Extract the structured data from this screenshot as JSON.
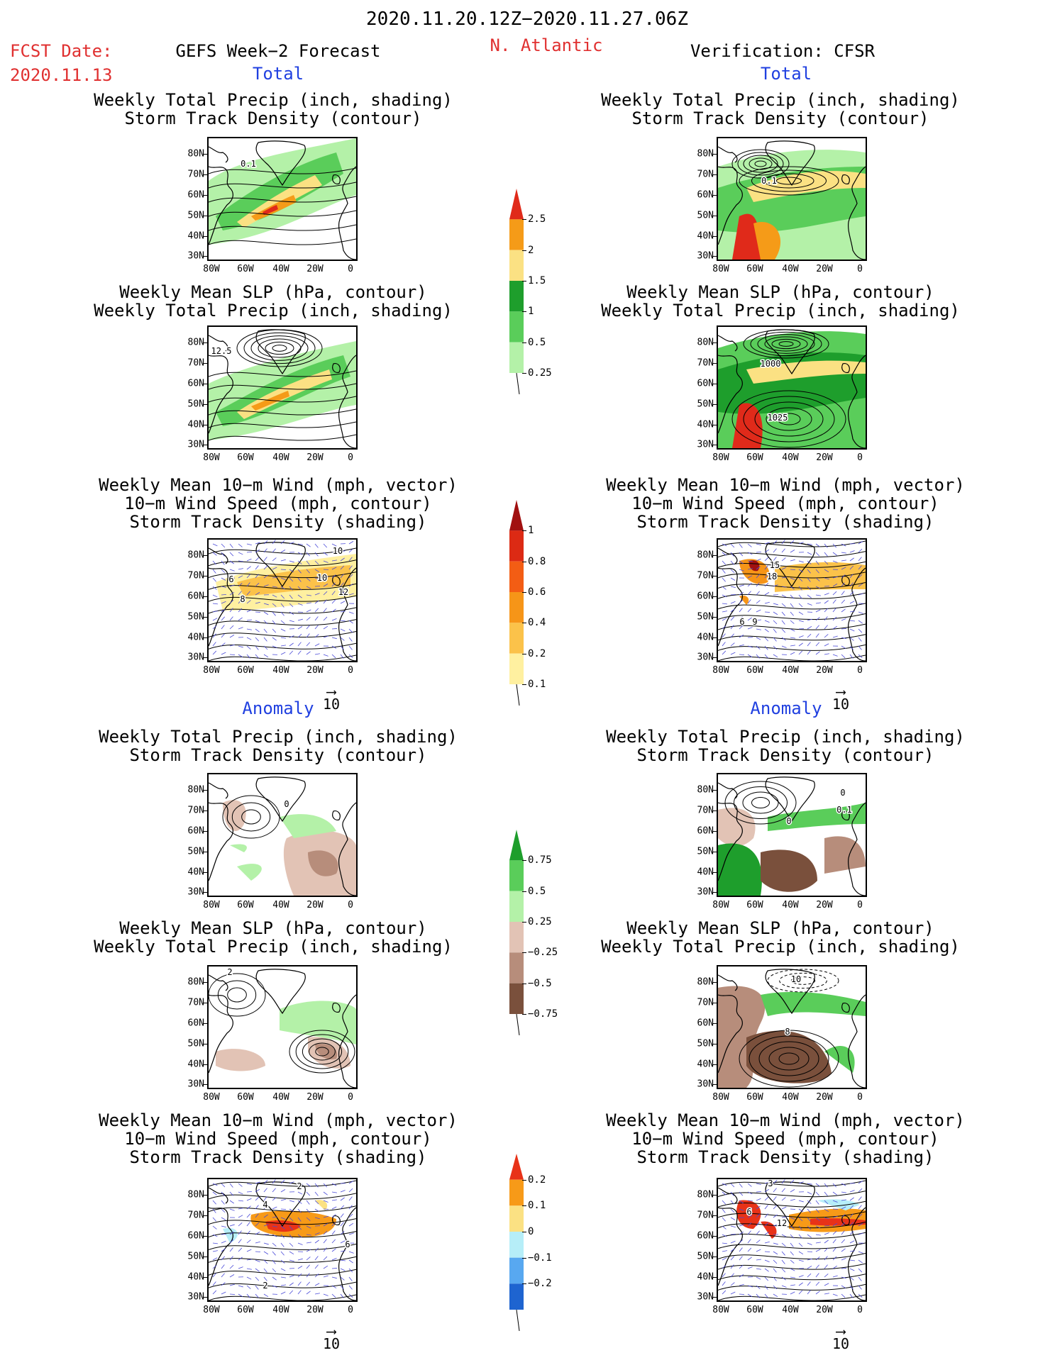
{
  "header": {
    "date_range": "2020.11.20.12Z−2020.11.27.06Z",
    "fcst_label": "FCST Date:",
    "fcst_date": "2020.11.13",
    "forecast_title": "GEFS Week−2 Forecast",
    "region": "N. Atlantic",
    "verification_title": "Verification: CFSR"
  },
  "sections": {
    "total": "Total",
    "anomaly": "Anomaly"
  },
  "panel_titles": {
    "precip_track": [
      "Weekly Total Precip (inch, shading)",
      "Storm Track Density (contour)"
    ],
    "slp_precip": [
      "Weekly Mean SLP (hPa, contour)",
      "Weekly Total Precip (inch, shading)"
    ],
    "wind": [
      "Weekly Mean 10−m Wind (mph, vector)",
      "10−m Wind Speed (mph, contour)",
      "Storm Track Density (shading)"
    ]
  },
  "axes": {
    "lat_ticks": [
      "80N",
      "70N",
      "60N",
      "50N",
      "40N",
      "30N"
    ],
    "lon_ticks": [
      "80W",
      "60W",
      "40W",
      "20W",
      "0"
    ]
  },
  "vector_ref": "10",
  "contour_labels": {
    "fc_total_precip": [
      "0.1"
    ],
    "vf_total_precip": [
      "0.1"
    ],
    "fc_total_slp": [
      "12.5"
    ],
    "vf_total_slp": [
      "1000",
      "1025"
    ],
    "fc_total_wind": [
      "10",
      "10",
      "6",
      "8",
      "12"
    ],
    "vf_total_wind": [
      "15",
      "18",
      "6",
      "9"
    ],
    "fc_anom_precip": [
      "0"
    ],
    "vf_anom_precip": [
      "0",
      "0.1",
      "0"
    ],
    "fc_anom_slp": [
      "2"
    ],
    "vf_anom_slp": [
      "10",
      "8"
    ],
    "fc_anom_wind": [
      "2",
      "4",
      "6",
      "2"
    ],
    "vf_anom_wind": [
      "3",
      "6",
      "12"
    ]
  },
  "colorbars": {
    "precip_total": {
      "labels": [
        "2.5",
        "2",
        "1.5",
        "1",
        "0.5",
        "0.25"
      ],
      "colors": [
        "#e02a1a",
        "#f59b18",
        "#fbe183",
        "#1e9e2c",
        "#5acd5a",
        "#b4f1a8"
      ]
    },
    "track_density": {
      "labels": [
        "1",
        "0.8",
        "0.6",
        "0.4",
        "0.2",
        "0.1"
      ],
      "colors": [
        "#a11010",
        "#dc2a14",
        "#f35d14",
        "#f69518",
        "#fbc24a",
        "#fff0a0"
      ]
    },
    "precip_anom": {
      "labels": [
        "0.75",
        "0.5",
        "0.25",
        "−0.25",
        "−0.5",
        "−0.75"
      ],
      "colors": [
        "#1e9e2c",
        "#5acd5a",
        "#b4f1a8",
        "#e2c3b5",
        "#b78d7b",
        "#7a503c"
      ]
    },
    "track_anom": {
      "labels": [
        "0.2",
        "0.1",
        "0",
        "−0.1",
        "−0.2"
      ],
      "colors": [
        "#e83218",
        "#f79a18",
        "#fbe183",
        "#b6eef8",
        "#58a8f0",
        "#1e64d0"
      ]
    }
  }
}
